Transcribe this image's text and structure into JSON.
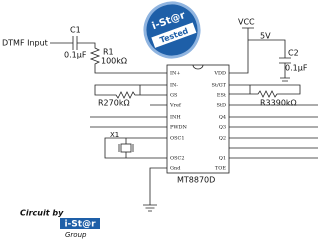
{
  "labels": {
    "input": "DTMF Input",
    "c1": "C1",
    "c1_value": "0.1µF",
    "r1": "R1",
    "r1_value": "100kΩ",
    "r2": "R270kΩ",
    "r3": "R3390kΩ",
    "vcc": "VCC",
    "vcc_value": "5V",
    "c2": "C2",
    "c2_value": "0.1µF",
    "x1": "X1"
  },
  "chip": {
    "name": "MT8870D",
    "left_pins": [
      "IN+",
      "IN-",
      "GS",
      "Vref",
      "INH",
      "PWDN",
      "OSC1",
      "OSC2",
      "Gnd"
    ],
    "right_pins": [
      "VDD",
      "St/GT",
      "ESt",
      "StD",
      "Q4",
      "Q3",
      "Q2",
      "Q1",
      "TOE"
    ]
  },
  "badge": {
    "brand": "i-St@r",
    "text": "Tested"
  },
  "logo": {
    "line1": "Circuit by",
    "brand": "i-St@r",
    "line2": "Group"
  }
}
